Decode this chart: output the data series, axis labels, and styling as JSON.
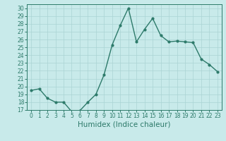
{
  "x": [
    0,
    1,
    2,
    3,
    4,
    5,
    6,
    7,
    8,
    9,
    10,
    11,
    12,
    13,
    14,
    15,
    16,
    17,
    18,
    19,
    20,
    21,
    22,
    23
  ],
  "y": [
    19.5,
    19.7,
    18.5,
    18.0,
    18.0,
    16.8,
    16.9,
    18.0,
    19.0,
    21.5,
    25.3,
    27.8,
    30.0,
    25.7,
    27.3,
    28.7,
    26.5,
    25.7,
    25.8,
    25.7,
    25.6,
    23.5,
    22.8,
    21.9
  ],
  "line_color": "#2d7a6a",
  "marker": "o",
  "markersize": 2.0,
  "linewidth": 1.0,
  "xlabel": "Humidex (Indice chaleur)",
  "xlim": [
    -0.5,
    23.5
  ],
  "ylim": [
    17,
    30.5
  ],
  "yticks": [
    17,
    18,
    19,
    20,
    21,
    22,
    23,
    24,
    25,
    26,
    27,
    28,
    29,
    30
  ],
  "xticks": [
    0,
    1,
    2,
    3,
    4,
    5,
    6,
    7,
    8,
    9,
    10,
    11,
    12,
    13,
    14,
    15,
    16,
    17,
    18,
    19,
    20,
    21,
    22,
    23
  ],
  "bg_color": "#c8eaea",
  "grid_color": "#aad4d4",
  "line_tick_color": "#2d7a6a",
  "xlabel_fontsize": 7.5,
  "tick_labelsize": 5.5
}
